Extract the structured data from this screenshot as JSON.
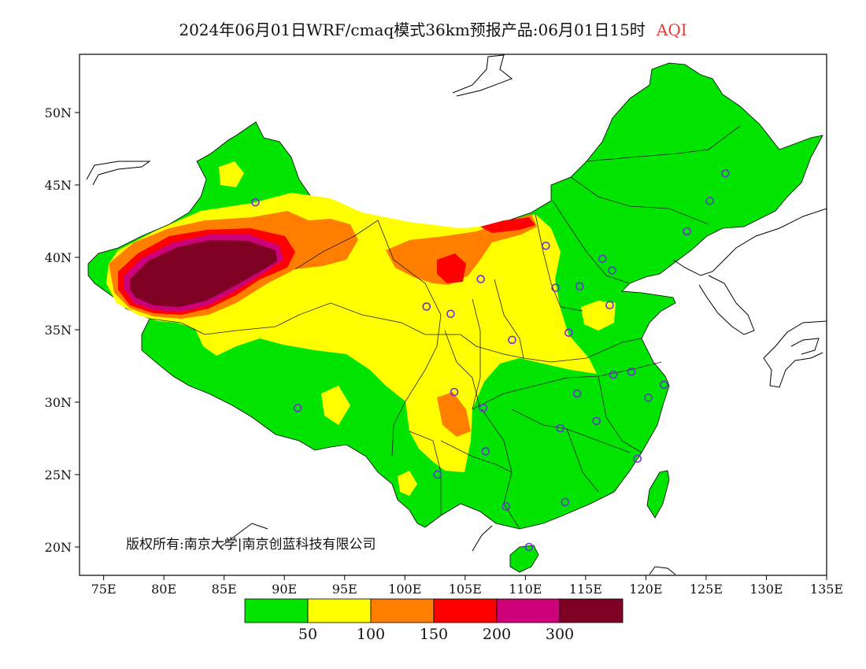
{
  "title": "2024年06月01日WRF/cmaq模式36km预报产品:06月01日15时",
  "title_suffix": "AQI",
  "copyright": "版权所有:南京大学|南京创蓝科技有限公司",
  "axes": {
    "lat_labels": [
      "50N",
      "45N",
      "40N",
      "35N",
      "30N",
      "25N",
      "20N"
    ],
    "lat_values": [
      50,
      45,
      40,
      35,
      30,
      25,
      20
    ],
    "lon_labels": [
      "75E",
      "80E",
      "85E",
      "90E",
      "95E",
      "100E",
      "105E",
      "110E",
      "115E",
      "120E",
      "125E",
      "130E",
      "135E"
    ],
    "lon_values": [
      75,
      80,
      85,
      90,
      95,
      100,
      105,
      110,
      115,
      120,
      125,
      130,
      135
    ]
  },
  "legend": {
    "colors": [
      "#00e400",
      "#ffff00",
      "#ff7e00",
      "#ff0000",
      "#cc0077",
      "#7e0023"
    ],
    "labels": [
      "50",
      "100",
      "150",
      "200",
      "300"
    ]
  },
  "stations": [
    [
      87.6,
      43.8
    ],
    [
      91.1,
      29.6
    ],
    [
      101.8,
      36.6
    ],
    [
      103.8,
      36.1
    ],
    [
      106.3,
      38.5
    ],
    [
      111.7,
      40.8
    ],
    [
      112.5,
      37.9
    ],
    [
      114.5,
      38.0
    ],
    [
      116.4,
      39.9
    ],
    [
      117.2,
      39.1
    ],
    [
      117.0,
      36.7
    ],
    [
      113.6,
      34.8
    ],
    [
      108.9,
      34.3
    ],
    [
      104.1,
      30.7
    ],
    [
      106.5,
      29.6
    ],
    [
      106.7,
      26.6
    ],
    [
      102.7,
      25.0
    ],
    [
      108.4,
      22.8
    ],
    [
      113.3,
      23.1
    ],
    [
      110.3,
      20.0
    ],
    [
      112.9,
      28.2
    ],
    [
      115.9,
      28.7
    ],
    [
      114.3,
      30.6
    ],
    [
      117.3,
      31.9
    ],
    [
      118.8,
      32.1
    ],
    [
      120.2,
      30.3
    ],
    [
      121.5,
      31.2
    ],
    [
      119.3,
      26.1
    ],
    [
      123.4,
      41.8
    ],
    [
      125.3,
      43.9
    ],
    [
      126.6,
      45.8
    ]
  ]
}
